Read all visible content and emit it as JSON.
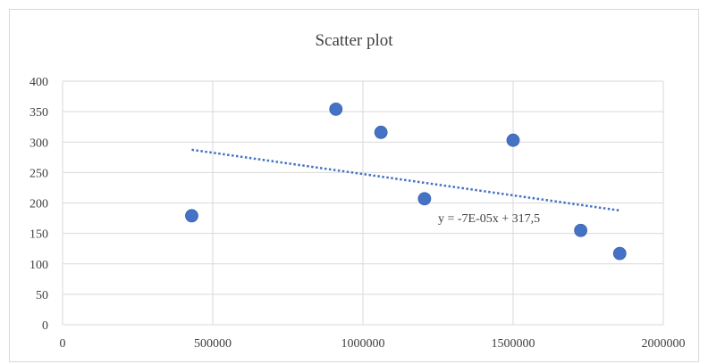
{
  "chart_data": {
    "type": "scatter",
    "title": "Scatter plot",
    "xlabel": "",
    "ylabel": "",
    "xlim": [
      0,
      2000000
    ],
    "ylim": [
      0,
      400
    ],
    "x_ticks": [
      "0",
      "500000",
      "1000000",
      "1500000",
      "2000000"
    ],
    "y_ticks": [
      "0",
      "50",
      "100",
      "150",
      "200",
      "250",
      "300",
      "350",
      "400"
    ],
    "grid": true,
    "series": [
      {
        "x": [
          430000,
          910000,
          1060000,
          1205000,
          1500000,
          1725000,
          1855000
        ],
        "y": [
          179,
          354,
          316,
          207,
          303,
          155,
          117
        ]
      }
    ],
    "trendline": {
      "label": "y = -7E-05x + 317,5",
      "slope": -7e-05,
      "intercept": 317.5,
      "x_start": 430000,
      "x_end": 1855000
    },
    "colors": {
      "marker": "#4472c4",
      "trendline": "#4472c4",
      "grid": "#d9d9d9"
    }
  }
}
